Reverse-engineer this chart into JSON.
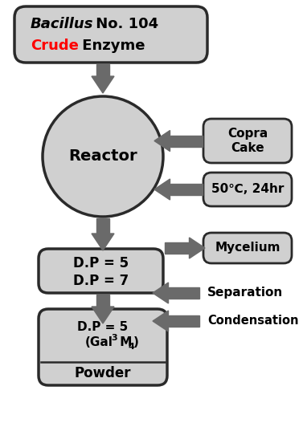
{
  "bg_color": "#ffffff",
  "box_fill": "#d0d0d0",
  "box_edge": "#2a2a2a",
  "arrow_color": "#6a6a6a",
  "right_box1": "Copra\nCake",
  "right_box2": "50℃, 24hr",
  "right_box3": "Mycelium",
  "right_text1": "Separation",
  "right_text2": "Condensation",
  "reactor_label": "Reactor",
  "dp_line1": "D.P = 5",
  "dp_line2": "D.P = 7",
  "powder_dp": "D.P = 5",
  "powder_label": "Powder"
}
